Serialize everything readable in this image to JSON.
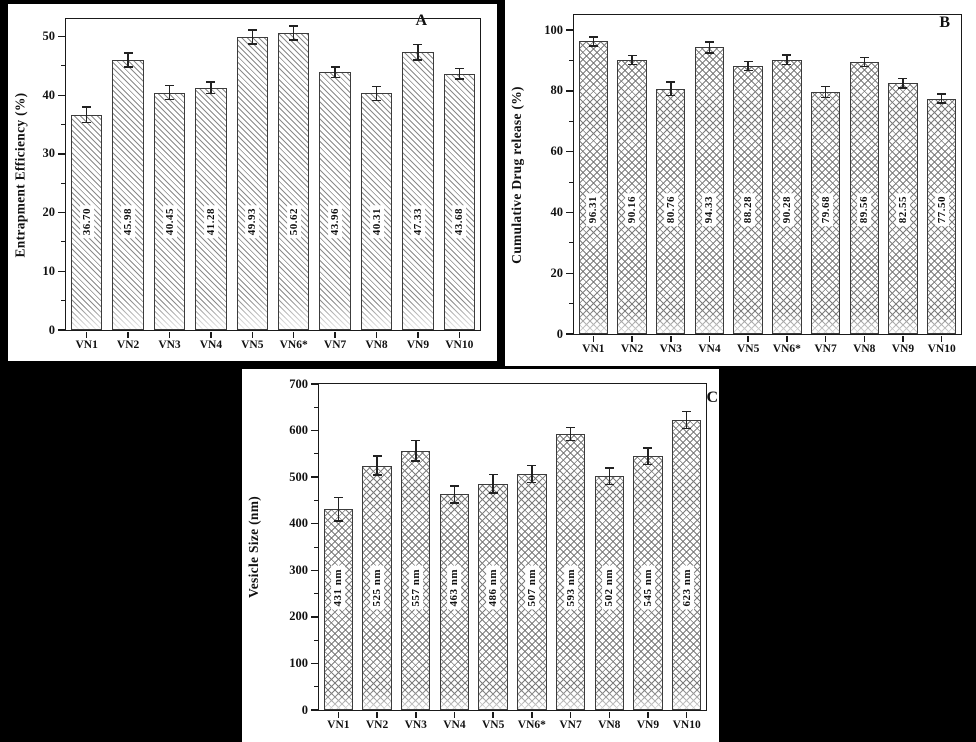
{
  "figure": {
    "background_color": "#000000",
    "panel_color": "#ffffff",
    "axis_color": "#1a1a1a"
  },
  "chart_data": [
    {
      "id": "panel-a",
      "type": "bar",
      "corner_label": "A",
      "title": "",
      "xlabel": "",
      "ylabel": "Entrapment Efficiency (%)",
      "categories": [
        "VN1",
        "VN2",
        "VN3",
        "VN4",
        "VN5",
        "VN6*",
        "VN7",
        "VN8",
        "VN9",
        "VN10"
      ],
      "values": [
        36.7,
        45.98,
        40.45,
        41.28,
        49.93,
        50.62,
        43.96,
        40.31,
        47.33,
        43.68
      ],
      "bar_labels": [
        "36.70",
        "45.98",
        "40.45",
        "41.28",
        "49.93",
        "50.62",
        "43.96",
        "40.31",
        "47.33",
        "43.68"
      ],
      "errors": [
        1.3,
        1.2,
        1.2,
        1.0,
        1.2,
        1.2,
        0.9,
        1.2,
        1.3,
        0.9
      ],
      "ylim": [
        0,
        53
      ],
      "yticks": [
        0,
        10,
        20,
        30,
        40,
        50
      ],
      "yminor": 5,
      "hatch": "diagonal",
      "label_center_y": 18.5,
      "grid": "off",
      "legend": "none"
    },
    {
      "id": "panel-b",
      "type": "bar",
      "corner_label": "B",
      "title": "",
      "xlabel": "",
      "ylabel": "Cumulative Drug release (%)",
      "categories": [
        "VN1",
        "VN2",
        "VN3",
        "VN4",
        "VN5",
        "VN6*",
        "VN7",
        "VN8",
        "VN9",
        "VN10"
      ],
      "values": [
        96.31,
        90.16,
        80.76,
        94.33,
        88.28,
        90.28,
        79.68,
        89.56,
        82.55,
        77.5
      ],
      "bar_labels": [
        "96.31",
        "90.16",
        "80.76",
        "94.33",
        "88.28",
        "90.28",
        "79.68",
        "89.56",
        "82.55",
        "77.50"
      ],
      "errors": [
        1.5,
        1.5,
        2.2,
        1.8,
        1.5,
        1.5,
        1.8,
        1.5,
        1.5,
        1.5
      ],
      "ylim": [
        0,
        105
      ],
      "yticks": [
        0,
        20,
        40,
        60,
        80,
        100
      ],
      "yminor": 10,
      "hatch": "cross",
      "label_center_y": 41,
      "grid": "off",
      "legend": "none"
    },
    {
      "id": "panel-c",
      "type": "bar",
      "corner_label": "C",
      "title": "",
      "xlabel": "",
      "ylabel": "Vesicle Size (nm)",
      "categories": [
        "VN1",
        "VN2",
        "VN3",
        "VN4",
        "VN5",
        "VN6*",
        "VN7",
        "VN8",
        "VN9",
        "VN10"
      ],
      "values": [
        431,
        525,
        557,
        463,
        486,
        507,
        593,
        502,
        545,
        623
      ],
      "bar_labels": [
        "431 nm",
        "525 nm",
        "557 nm",
        "463 nm",
        "486 nm",
        "507 nm",
        "593 nm",
        "502 nm",
        "545 nm",
        "623 nm"
      ],
      "errors": [
        25,
        20,
        22,
        18,
        20,
        18,
        14,
        18,
        18,
        18
      ],
      "ylim": [
        0,
        700
      ],
      "yticks": [
        0,
        100,
        200,
        300,
        400,
        500,
        600,
        700
      ],
      "yminor": 50,
      "hatch": "cross",
      "label_center_y": 262,
      "grid": "off",
      "legend": "none"
    }
  ]
}
